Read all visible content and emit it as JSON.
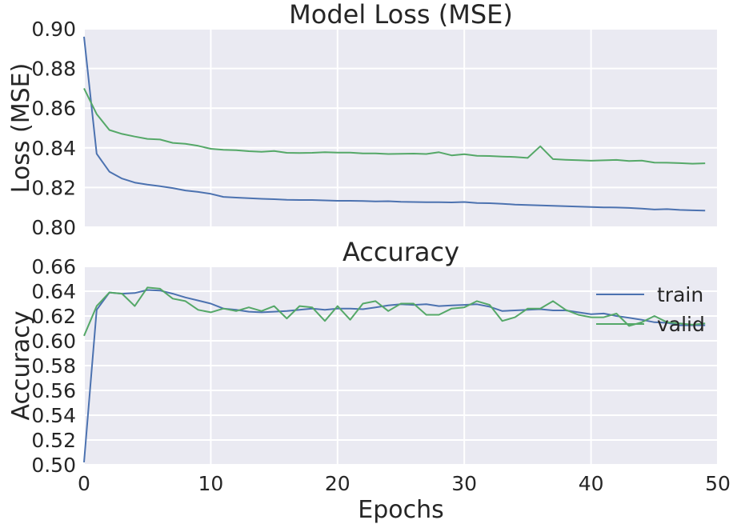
{
  "chart_data": [
    {
      "type": "line",
      "title": "Model Loss (MSE)",
      "xlabel": "",
      "ylabel": "Loss (MSE)",
      "xlim": [
        0,
        50
      ],
      "ylim": [
        0.8,
        0.9
      ],
      "xticks": [
        0,
        10,
        20,
        30,
        40,
        50
      ],
      "yticks": [
        "0.80",
        "0.82",
        "0.84",
        "0.86",
        "0.88",
        "0.90"
      ],
      "show_xtick_labels": false,
      "grid": true,
      "x": [
        0,
        1,
        2,
        3,
        4,
        5,
        6,
        7,
        8,
        9,
        10,
        11,
        12,
        13,
        14,
        15,
        16,
        17,
        18,
        19,
        20,
        21,
        22,
        23,
        24,
        25,
        26,
        27,
        28,
        29,
        30,
        31,
        32,
        33,
        34,
        35,
        36,
        37,
        38,
        39,
        40,
        41,
        42,
        43,
        44,
        45,
        46,
        47,
        48,
        49
      ],
      "series": [
        {
          "name": "train",
          "color": "#4c72b0",
          "values": [
            0.896,
            0.837,
            0.828,
            0.8245,
            0.8225,
            0.8215,
            0.8207,
            0.8197,
            0.8185,
            0.8178,
            0.8168,
            0.8153,
            0.8149,
            0.8146,
            0.8143,
            0.8141,
            0.8138,
            0.8137,
            0.8137,
            0.8135,
            0.8133,
            0.8133,
            0.8132,
            0.813,
            0.8131,
            0.8128,
            0.8127,
            0.8126,
            0.8126,
            0.8125,
            0.8127,
            0.8122,
            0.8121,
            0.8118,
            0.8114,
            0.8112,
            0.811,
            0.8108,
            0.8106,
            0.8104,
            0.8102,
            0.81,
            0.8099,
            0.8097,
            0.8094,
            0.8089,
            0.8091,
            0.8087,
            0.8085,
            0.8084
          ]
        },
        {
          "name": "valid",
          "color": "#55a868",
          "values": [
            0.87,
            0.857,
            0.849,
            0.847,
            0.8457,
            0.8445,
            0.8442,
            0.8425,
            0.842,
            0.841,
            0.8395,
            0.839,
            0.8388,
            0.8383,
            0.838,
            0.8384,
            0.8375,
            0.8374,
            0.8375,
            0.8378,
            0.8376,
            0.8376,
            0.8372,
            0.8372,
            0.8369,
            0.837,
            0.8371,
            0.8369,
            0.8378,
            0.8362,
            0.8368,
            0.836,
            0.8359,
            0.8356,
            0.8354,
            0.8349,
            0.8408,
            0.8343,
            0.834,
            0.8338,
            0.8335,
            0.8337,
            0.8339,
            0.8334,
            0.8336,
            0.8326,
            0.8325,
            0.8323,
            0.832,
            0.8322
          ]
        }
      ]
    },
    {
      "type": "line",
      "title": "Accuracy",
      "xlabel": "Epochs",
      "ylabel": "Accuracy",
      "xlim": [
        0,
        50
      ],
      "ylim": [
        0.5,
        0.66
      ],
      "xticks": [
        0,
        10,
        20,
        30,
        40,
        50
      ],
      "yticks": [
        "0.50",
        "0.52",
        "0.54",
        "0.56",
        "0.58",
        "0.60",
        "0.62",
        "0.64",
        "0.66"
      ],
      "show_xtick_labels": true,
      "grid": true,
      "legend": "upper-right",
      "x": [
        0,
        1,
        2,
        3,
        4,
        5,
        6,
        7,
        8,
        9,
        10,
        11,
        12,
        13,
        14,
        15,
        16,
        17,
        18,
        19,
        20,
        21,
        22,
        23,
        24,
        25,
        26,
        27,
        28,
        29,
        30,
        31,
        32,
        33,
        34,
        35,
        36,
        37,
        38,
        39,
        40,
        41,
        42,
        43,
        44,
        45,
        46,
        47,
        48,
        49
      ],
      "series": [
        {
          "name": "train",
          "color": "#4c72b0",
          "values": [
            0.502,
            0.625,
            0.639,
            0.638,
            0.6385,
            0.641,
            0.6405,
            0.638,
            0.635,
            0.6325,
            0.63,
            0.626,
            0.625,
            0.6235,
            0.623,
            0.6235,
            0.624,
            0.625,
            0.626,
            0.625,
            0.626,
            0.626,
            0.6255,
            0.627,
            0.6285,
            0.6295,
            0.629,
            0.6295,
            0.628,
            0.6285,
            0.629,
            0.6295,
            0.6275,
            0.624,
            0.6245,
            0.625,
            0.6255,
            0.6245,
            0.6245,
            0.623,
            0.6215,
            0.622,
            0.62,
            0.6185,
            0.617,
            0.615,
            0.6145,
            0.6125,
            0.6125,
            0.6125
          ]
        },
        {
          "name": "valid",
          "color": "#55a868",
          "values": [
            0.604,
            0.628,
            0.639,
            0.638,
            0.628,
            0.643,
            0.642,
            0.634,
            0.632,
            0.625,
            0.623,
            0.626,
            0.624,
            0.627,
            0.624,
            0.628,
            0.618,
            0.628,
            0.627,
            0.616,
            0.628,
            0.617,
            0.63,
            0.632,
            0.624,
            0.63,
            0.63,
            0.621,
            0.621,
            0.626,
            0.627,
            0.632,
            0.629,
            0.616,
            0.619,
            0.626,
            0.626,
            0.632,
            0.625,
            0.621,
            0.619,
            0.619,
            0.622,
            0.612,
            0.615,
            0.62,
            0.615,
            0.614,
            0.613,
            0.614
          ]
        }
      ]
    }
  ]
}
